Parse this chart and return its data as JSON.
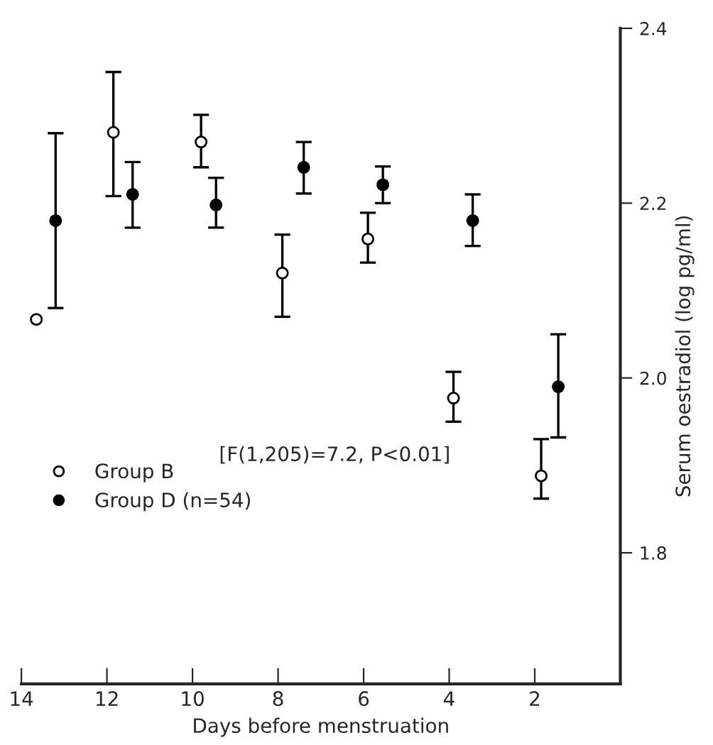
{
  "chart_data": {
    "type": "scatter",
    "xlabel": "Days before menstruation",
    "ylabel": "Serum oestradiol (log pg/ml)",
    "xlim": [
      14,
      0
    ],
    "xticks": [
      14,
      12,
      10,
      8,
      6,
      4,
      2
    ],
    "ylim": [
      1.65,
      2.4
    ],
    "yticks": [
      1.8,
      {
        "value": 2.0,
        "label": "2.0"
      },
      2.2,
      2.4
    ],
    "grid": false,
    "legend": "left",
    "marker": "circle",
    "series": [
      {
        "name": "Group B",
        "color": "#ffffff",
        "x": [
          13.65,
          11.85,
          9.8,
          7.9,
          5.9,
          3.9,
          1.85
        ],
        "values": [
          2.067,
          2.281,
          2.27,
          2.12,
          2.159,
          1.977,
          1.888
        ],
        "errors": [
          null,
          [
            2.208,
            2.35
          ],
          [
            2.241,
            2.301
          ],
          [
            2.07,
            2.164
          ],
          [
            2.132,
            2.189
          ],
          [
            1.95,
            2.007
          ],
          [
            1.862,
            1.93
          ]
        ]
      },
      {
        "name": "Group D (n=54)",
        "color": "#000000",
        "x": [
          13.2,
          11.4,
          9.45,
          7.4,
          5.55,
          3.45,
          1.45
        ],
        "values": [
          2.18,
          2.21,
          2.198,
          2.241,
          2.221,
          2.18,
          1.99
        ],
        "errors": [
          [
            2.08,
            2.28
          ],
          [
            2.172,
            2.247
          ],
          [
            2.172,
            2.229
          ],
          [
            2.211,
            2.27
          ],
          [
            2.2,
            2.242
          ],
          [
            2.151,
            2.21
          ],
          [
            1.932,
            2.05
          ]
        ]
      }
    ],
    "annotations": [
      "[F(1,205)=7.2, P<0.01]"
    ]
  }
}
